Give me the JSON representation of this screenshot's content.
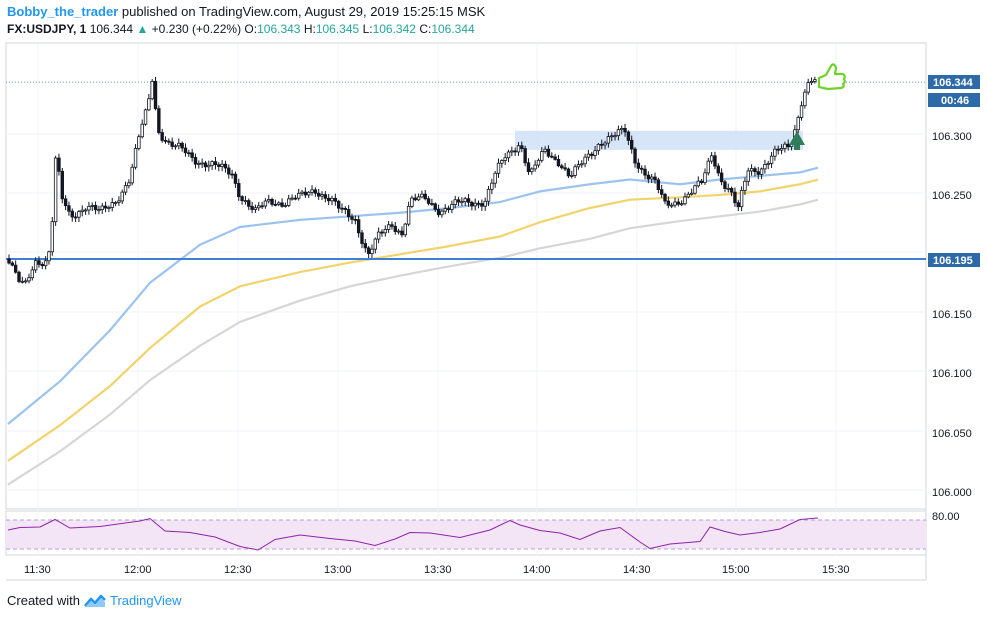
{
  "header": {
    "author": "Bobby_the_trader",
    "published_text": "published on TradingView.com, August 29, 2019 15:25:15 MSK",
    "symbol": "FX:USDJPY, 1",
    "last": "106.344",
    "change": "+0.230 (+0.22%)",
    "o_label": "O:",
    "o_value": "106.343",
    "h_label": "H:",
    "h_value": "106.345",
    "l_label": "L:",
    "l_value": "106.342",
    "c_label": "C:",
    "c_value": "106.344"
  },
  "price_axis": {
    "labels": [
      "106.300",
      "106.250",
      "106.150",
      "106.100",
      "106.050",
      "106.000"
    ],
    "current_price": "106.344",
    "countdown": "00:46",
    "level_price": "106.195"
  },
  "rsi_axis": {
    "label": "80.00"
  },
  "time_axis": {
    "labels": [
      "11:30",
      "12:00",
      "12:30",
      "13:00",
      "13:30",
      "14:00",
      "14:30",
      "15:00",
      "15:30"
    ]
  },
  "footer": {
    "created_with": "Created with",
    "brand": "TradingView"
  },
  "colors": {
    "ma_fast": "#9cc3ef",
    "ma_mid": "#f2d36b",
    "ma_slow": "#d6d6d6",
    "level_line": "#3d7fd6",
    "zone": "#cfe0f6",
    "rsi": "#8e24aa",
    "rsi_band": "#f3e5f5",
    "arrow": "#2e7d5b",
    "thumb": "#6fd12b"
  },
  "chart_data": {
    "type": "candlestick",
    "ylim": [
      105.985,
      106.38
    ],
    "horizontal_level": 106.195,
    "resistance_zone": [
      106.287,
      106.303
    ]
  }
}
